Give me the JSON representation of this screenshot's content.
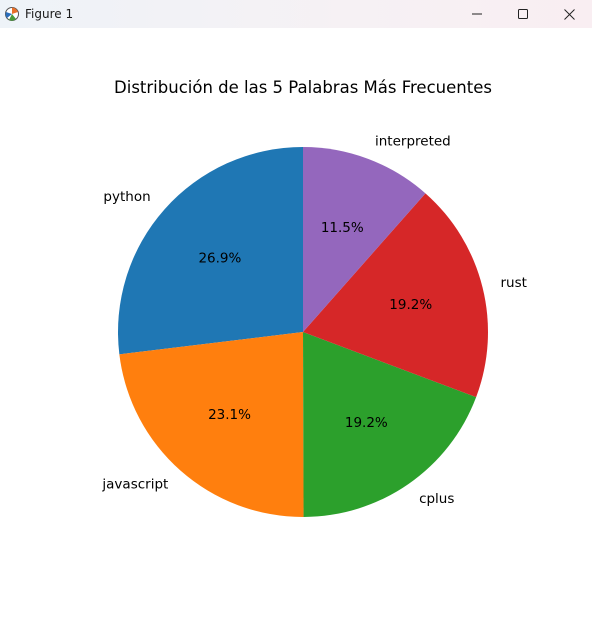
{
  "window": {
    "title": "Figure 1",
    "icons": {
      "app": "matplotlib-icon",
      "minimize": "minimize-icon",
      "maximize": "maximize-icon",
      "close": "close-icon"
    }
  },
  "chart_data": {
    "type": "pie",
    "title": "Distribución de las 5 Palabras Más Frecuentes",
    "start_angle_deg": 90,
    "direction": "counterclockwise",
    "slices": [
      {
        "label": "python",
        "value": 26.9,
        "pct_label": "26.9%",
        "color": "#1f77b4"
      },
      {
        "label": "javascript",
        "value": 23.1,
        "pct_label": "23.1%",
        "color": "#ff7f0e"
      },
      {
        "label": "cplus",
        "value": 19.2,
        "pct_label": "19.2%",
        "color": "#2ca02c"
      },
      {
        "label": "rust",
        "value": 19.2,
        "pct_label": "19.2%",
        "color": "#d62728"
      },
      {
        "label": "interpreted",
        "value": 11.5,
        "pct_label": "11.5%",
        "color": "#9467bd"
      }
    ]
  }
}
